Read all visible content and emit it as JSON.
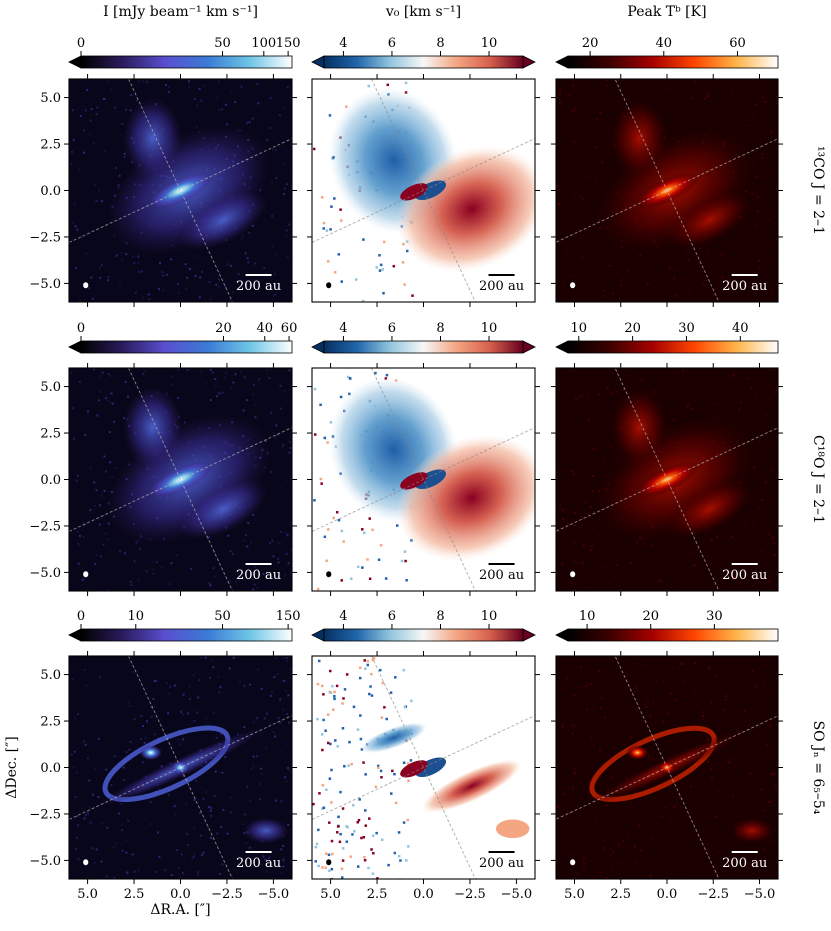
{
  "figure": {
    "column_headers": [
      "I [mJy beam⁻¹ km s⁻¹]",
      "v₀ [km s⁻¹]",
      "Peak Tᵇ [K]"
    ],
    "row_labels": [
      "¹³CO J = 2–1",
      "C¹⁸O J = 2–1",
      "SO Jₙ = 6₅–5₄"
    ],
    "x_axis_label": "ΔR.A. [″]",
    "y_axis_label": "ΔDec. [″]",
    "x_ticks": [
      "5.0",
      "2.5",
      "0.0",
      "−2.5",
      "−5.0"
    ],
    "y_ticks": [
      "5.0",
      "2.5",
      "0.0",
      "−2.5",
      "−5.0"
    ],
    "scalebar_label": "200 au",
    "colors": {
      "moment0_ramp": [
        "#000000",
        "#2b1c5e",
        "#5a4fcf",
        "#3a7bd5",
        "#6ec6e6",
        "#ffffff"
      ],
      "velocity_ramp": [
        "#053061",
        "#2166ac",
        "#92c5de",
        "#f7f7f7",
        "#f4a582",
        "#d6604d",
        "#67001f"
      ],
      "temperature_ramp": [
        "#000000",
        "#3d0000",
        "#a50000",
        "#ff4500",
        "#ffb347",
        "#ffffff"
      ]
    }
  },
  "chart_data": [
    {
      "type": "heatmap",
      "row": "13CO J=2-1",
      "quantity": "Integrated intensity I (mJy beam^-1 km s^-1)",
      "colorbar_ticks": [
        "0",
        "50",
        "100",
        "150"
      ],
      "colorbar_tick_values": [
        0,
        50,
        100,
        150
      ],
      "colorbar_range": [
        0,
        160
      ],
      "xlim": [
        6,
        -6
      ],
      "ylim": [
        -6,
        6
      ]
    },
    {
      "type": "heatmap",
      "row": "13CO J=2-1",
      "quantity": "Velocity v0 (km s^-1)",
      "colorbar_ticks": [
        "4",
        "6",
        "8",
        "10"
      ],
      "colorbar_tick_values": [
        4,
        6,
        8,
        10
      ],
      "colorbar_range": [
        3.2,
        11.4
      ],
      "xlim": [
        6,
        -6
      ],
      "ylim": [
        -6,
        6
      ]
    },
    {
      "type": "heatmap",
      "row": "13CO J=2-1",
      "quantity": "Peak brightness temperature Tb (K)",
      "colorbar_ticks": [
        "20",
        "40",
        "60"
      ],
      "colorbar_tick_values": [
        20,
        40,
        60
      ],
      "colorbar_range": [
        14,
        71
      ],
      "xlim": [
        6,
        -6
      ],
      "ylim": [
        -6,
        6
      ]
    },
    {
      "type": "heatmap",
      "row": "C18O J=2-1",
      "quantity": "Integrated intensity I (mJy beam^-1 km s^-1)",
      "colorbar_ticks": [
        "0",
        "20",
        "40",
        "60"
      ],
      "colorbar_tick_values": [
        0,
        20,
        40,
        60
      ],
      "colorbar_range": [
        0,
        63
      ],
      "xlim": [
        6,
        -6
      ],
      "ylim": [
        -6,
        6
      ]
    },
    {
      "type": "heatmap",
      "row": "C18O J=2-1",
      "quantity": "Velocity v0 (km s^-1)",
      "colorbar_ticks": [
        "4",
        "6",
        "8",
        "10"
      ],
      "colorbar_tick_values": [
        4,
        6,
        8,
        10
      ],
      "colorbar_range": [
        3.2,
        11.4
      ],
      "xlim": [
        6,
        -6
      ],
      "ylim": [
        -6,
        6
      ]
    },
    {
      "type": "heatmap",
      "row": "C18O J=2-1",
      "quantity": "Peak brightness temperature Tb (K)",
      "colorbar_ticks": [
        "10",
        "20",
        "30",
        "40"
      ],
      "colorbar_tick_values": [
        10,
        20,
        30,
        40
      ],
      "colorbar_range": [
        8,
        47
      ],
      "xlim": [
        6,
        -6
      ],
      "ylim": [
        -6,
        6
      ]
    },
    {
      "type": "heatmap",
      "row": "SO JN=65-54",
      "quantity": "Integrated intensity I (mJy beam^-1 km s^-1)",
      "colorbar_ticks": [
        "0",
        "10",
        "50",
        "150"
      ],
      "colorbar_tick_values": [
        0,
        10,
        50,
        150
      ],
      "colorbar_range": [
        0,
        160
      ],
      "xlim": [
        6,
        -6
      ],
      "ylim": [
        -6,
        6
      ]
    },
    {
      "type": "heatmap",
      "row": "SO JN=65-54",
      "quantity": "Velocity v0 (km s^-1)",
      "colorbar_ticks": [
        "4",
        "6",
        "8",
        "10"
      ],
      "colorbar_tick_values": [
        4,
        6,
        8,
        10
      ],
      "colorbar_range": [
        3.2,
        11.4
      ],
      "xlim": [
        6,
        -6
      ],
      "ylim": [
        -6,
        6
      ]
    },
    {
      "type": "heatmap",
      "row": "SO JN=65-54",
      "quantity": "Peak brightness temperature Tb (K)",
      "colorbar_ticks": [
        "10",
        "20",
        "30"
      ],
      "colorbar_tick_values": [
        10,
        20,
        30
      ],
      "colorbar_range": [
        7,
        40
      ],
      "xlim": [
        6,
        -6
      ],
      "ylim": [
        -6,
        6
      ]
    }
  ]
}
